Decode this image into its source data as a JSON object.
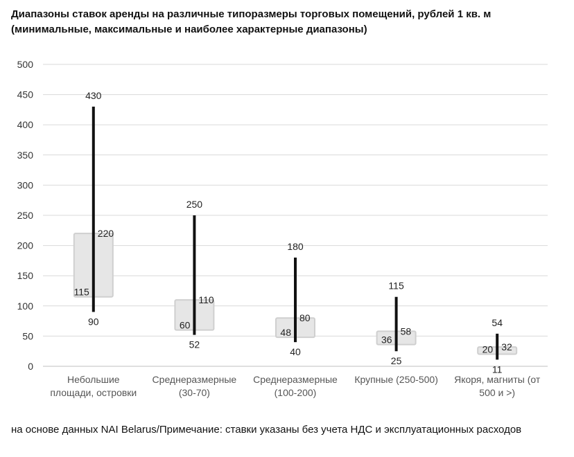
{
  "title_line1": "Диапазоны ставок аренды на различные типоразмеры торговых помещений, рублей 1 кв. м",
  "title_line2": "(минимальные, максимальные и наиболее характерные диапазоны)",
  "footnote": "на основе данных NAI Belarus/Примечание: ставки указаны без учета НДС и эксплуатационных расходов",
  "colors": {
    "range_line": "#111111",
    "box_fill": "#e6e6e6",
    "grid": "#d9d9d9"
  },
  "chart_data": {
    "type": "bar",
    "title": "Диапазоны ставок аренды на различные типоразмеры торговых помещений, рублей 1 кв. м (минимальные, максимальные и наиболее характерные диапазоны)",
    "ylim": [
      0,
      500
    ],
    "yticks": [
      0,
      50,
      100,
      150,
      200,
      250,
      300,
      350,
      400,
      450,
      500
    ],
    "grid": true,
    "categories": [
      [
        "Небольшие",
        "площади, островки"
      ],
      [
        "Среднеразмерные",
        "(30-70)"
      ],
      [
        "Среднеразмерные",
        "(100-200)"
      ],
      [
        "Крупные (250-500)"
      ],
      [
        "Якоря, магниты (от",
        "500 и >)"
      ]
    ],
    "series": [
      {
        "name": "",
        "role": "min",
        "values": [
          90,
          52,
          40,
          25,
          11
        ]
      },
      {
        "name": "",
        "role": "max",
        "values": [
          430,
          250,
          180,
          115,
          54
        ]
      },
      {
        "name": "",
        "role": "typical_low",
        "values": [
          115,
          60,
          48,
          36,
          20
        ]
      },
      {
        "name": "",
        "role": "typical_high",
        "values": [
          220,
          110,
          80,
          58,
          32
        ]
      }
    ]
  }
}
